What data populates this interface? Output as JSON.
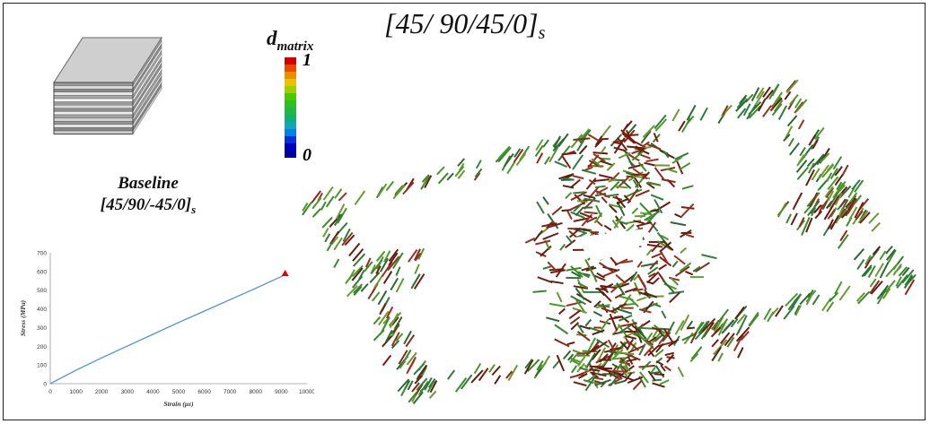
{
  "title": {
    "main": "[45/ 90/45/0]",
    "sub": "s"
  },
  "baseline": {
    "name": "Baseline",
    "layup_main": "[45/90/-45/0]",
    "layup_sub": "s"
  },
  "colorbar": {
    "label_main": "d",
    "label_sub": "matrix",
    "max": "1",
    "min": "0",
    "colors": [
      "#d40000",
      "#e84a00",
      "#f08a00",
      "#e8c400",
      "#9ed000",
      "#4cc800",
      "#2cc020",
      "#20b840",
      "#10b070",
      "#10a8b8",
      "#0080e8",
      "#0030d8",
      "#0000b8",
      "#0000a0"
    ]
  },
  "chart_data": {
    "type": "line",
    "title": "",
    "xlabel": "Strain (με)",
    "ylabel": "Stress (MPa)",
    "xlim": [
      0,
      10000
    ],
    "ylim": [
      0,
      700
    ],
    "xticks": [
      0,
      1000,
      2000,
      3000,
      4000,
      5000,
      6000,
      7000,
      8000,
      9000,
      10000
    ],
    "yticks": [
      0,
      100,
      200,
      300,
      400,
      500,
      600,
      700
    ],
    "grid": false,
    "series": [
      {
        "x": [
          0,
          1000,
          2000,
          3000,
          4000,
          5000,
          6000,
          7000,
          8000,
          9000,
          9150
        ],
        "y": [
          0,
          72,
          138,
          201,
          264,
          327,
          388,
          449,
          510,
          573,
          583
        ],
        "color": "#5b9bd5"
      }
    ],
    "failure_marker": {
      "x": 9150,
      "y": 590,
      "color": "#e00000"
    }
  }
}
